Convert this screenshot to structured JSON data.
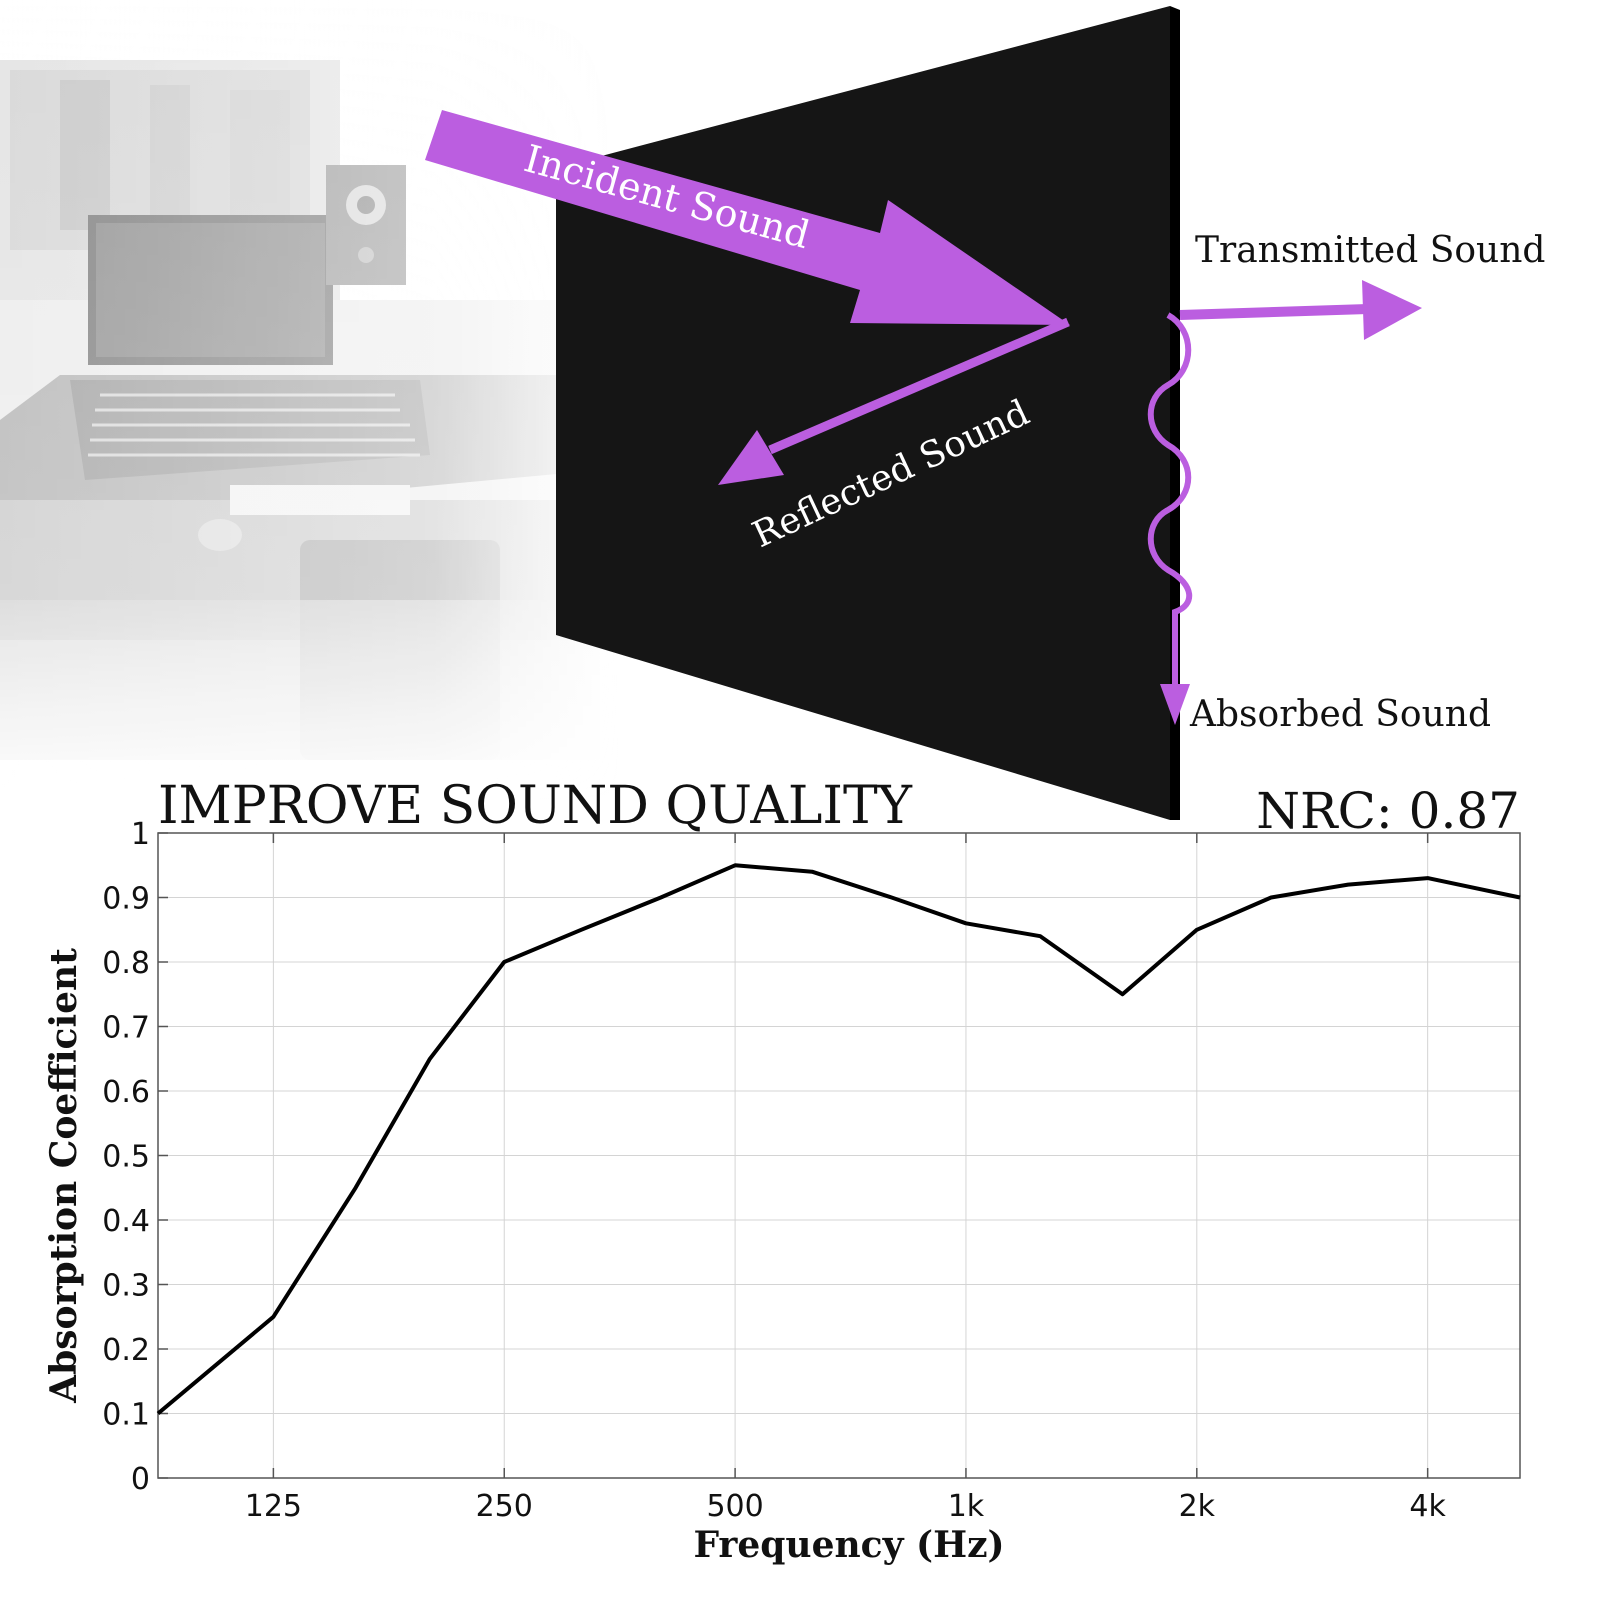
{
  "illustration": {
    "labels": {
      "incident": "Incident Sound",
      "transmitted": "Transmitted Sound",
      "reflected": "Reflected Sound",
      "absorbed": "Absorbed Sound"
    },
    "arrow_color": "#bb5ee0",
    "panel_color": "#151515"
  },
  "headline": "IMPROVE SOUND QUALITY",
  "nrc_label": "NRC: 0.87",
  "chart_data": {
    "type": "line",
    "xscale": "log2",
    "xlabel": "Frequency (Hz)",
    "ylabel": "Absorption Coefficient",
    "xlim": [
      88.4,
      5278
    ],
    "ylim": [
      0,
      1
    ],
    "x_ticks": [
      {
        "value": 125,
        "label": "125"
      },
      {
        "value": 250,
        "label": "250"
      },
      {
        "value": 500,
        "label": "500"
      },
      {
        "value": 1000,
        "label": "1k"
      },
      {
        "value": 2000,
        "label": "2k"
      },
      {
        "value": 4000,
        "label": "4k"
      }
    ],
    "y_ticks": [
      {
        "value": 0,
        "label": "0"
      },
      {
        "value": 0.1,
        "label": "0.1"
      },
      {
        "value": 0.2,
        "label": "0.2"
      },
      {
        "value": 0.3,
        "label": "0.3"
      },
      {
        "value": 0.4,
        "label": "0.4"
      },
      {
        "value": 0.5,
        "label": "0.5"
      },
      {
        "value": 0.6,
        "label": "0.6"
      },
      {
        "value": 0.7,
        "label": "0.7"
      },
      {
        "value": 0.8,
        "label": "0.8"
      },
      {
        "value": 0.9,
        "label": "0.9"
      },
      {
        "value": 1,
        "label": "1"
      }
    ],
    "grid": true,
    "line_color": "#000000",
    "x": [
      88.4,
      125,
      160,
      200,
      250,
      315,
      400,
      500,
      630,
      800,
      1000,
      1250,
      1600,
      2000,
      2500,
      3150,
      4000,
      5278
    ],
    "values": [
      0.1,
      0.25,
      0.45,
      0.65,
      0.8,
      0.85,
      0.9,
      0.95,
      0.94,
      0.9,
      0.86,
      0.84,
      0.75,
      0.85,
      0.9,
      0.92,
      0.93,
      0.9
    ]
  }
}
